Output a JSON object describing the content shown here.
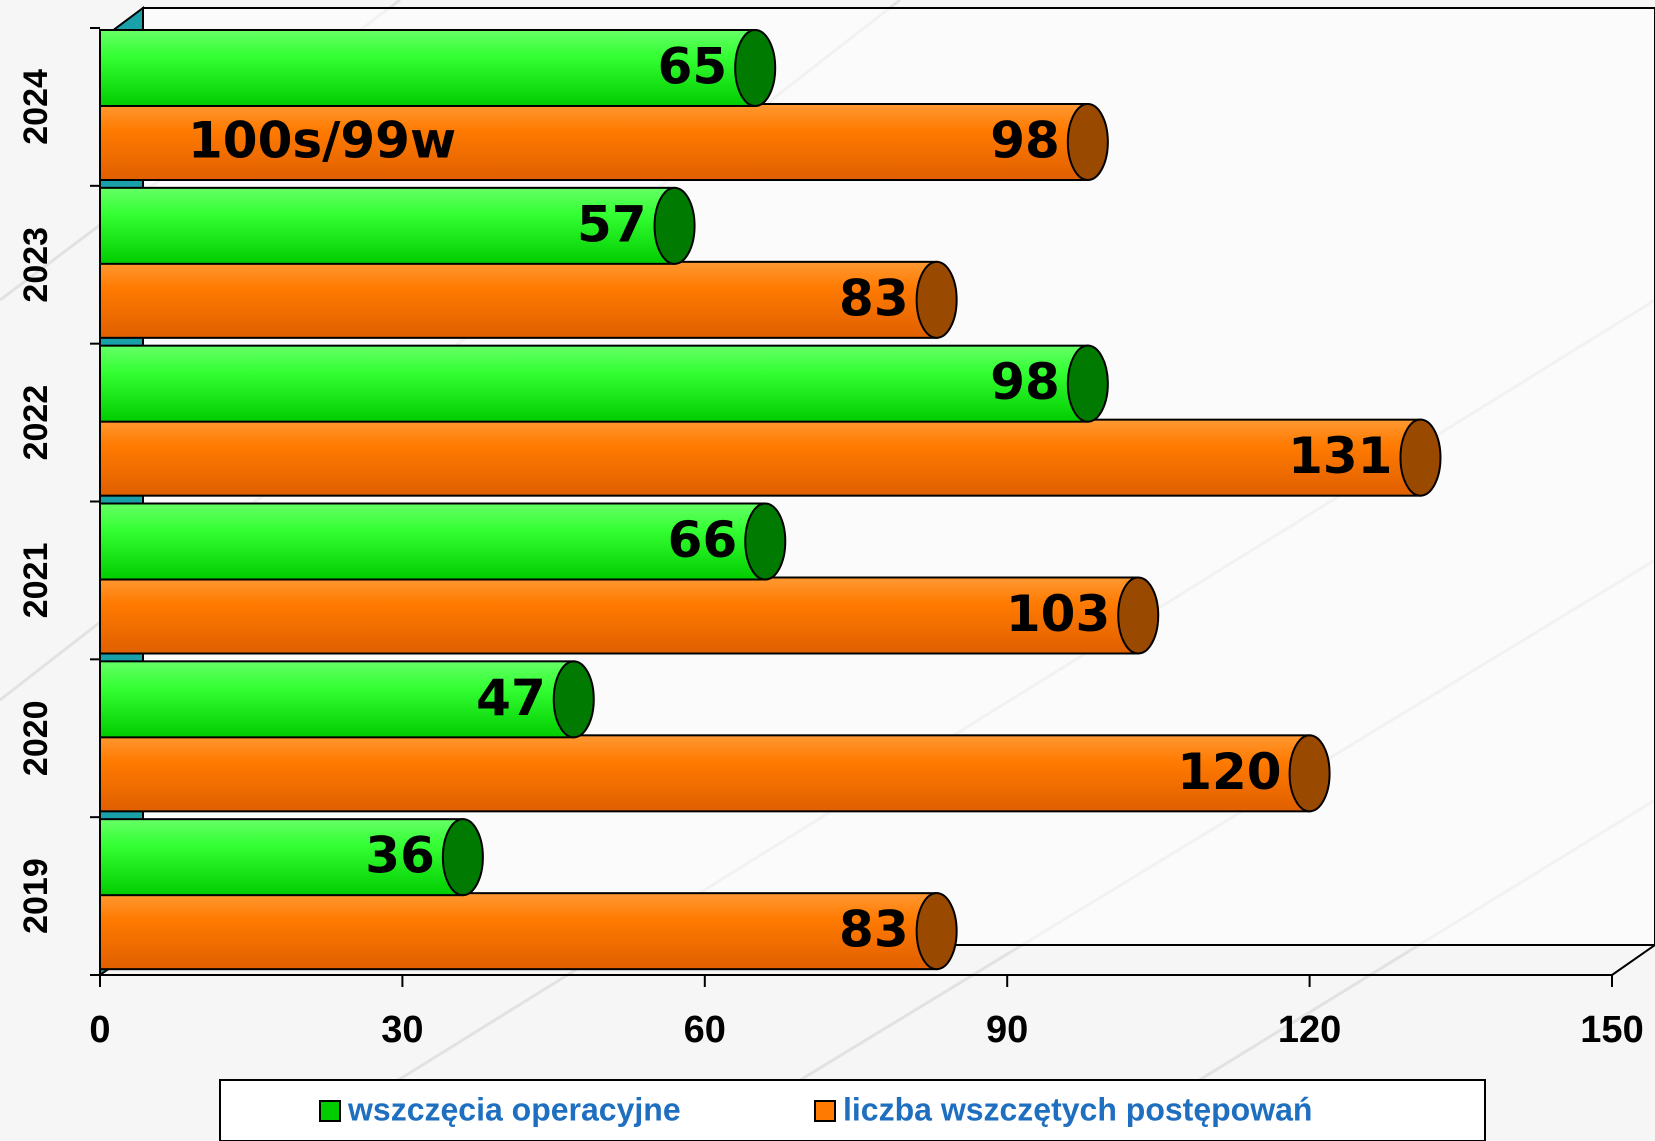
{
  "chart_data": {
    "type": "bar",
    "categories": [
      "2019",
      "2020",
      "2021",
      "2022",
      "2023",
      "2024"
    ],
    "series": [
      {
        "name": "wszczęcia operacyjne",
        "color": "#00cc00",
        "values": [
          36,
          47,
          66,
          98,
          57,
          65
        ]
      },
      {
        "name": "liczba wszczętych postępowań",
        "color": "#ff7a00",
        "values": [
          83,
          120,
          103,
          131,
          83,
          98
        ]
      }
    ],
    "annotation": "100s/99w",
    "xlim": [
      0,
      150
    ],
    "xticks": [
      0,
      30,
      60,
      90,
      120,
      150
    ]
  }
}
